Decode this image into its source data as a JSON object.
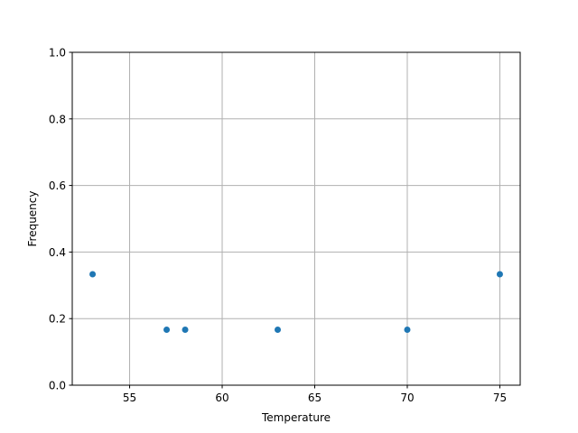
{
  "chart_data": {
    "type": "scatter",
    "title": "",
    "xlabel": "Temperature",
    "ylabel": "Frequency",
    "xlim": [
      51.9,
      76.1
    ],
    "ylim": [
      0,
      1
    ],
    "xticks": [
      "55",
      "60",
      "65",
      "70",
      "75"
    ],
    "yticks": [
      "0.0",
      "0.2",
      "0.4",
      "0.6",
      "0.8",
      "1.0"
    ],
    "grid": true,
    "marker_color": "#1f77b4",
    "grid_color": "#b0b0b0",
    "points": [
      {
        "x": 53,
        "y": 0.3333
      },
      {
        "x": 57,
        "y": 0.1667
      },
      {
        "x": 58,
        "y": 0.1667
      },
      {
        "x": 63,
        "y": 0.1667
      },
      {
        "x": 70,
        "y": 0.1667
      },
      {
        "x": 75,
        "y": 0.3333
      }
    ]
  }
}
